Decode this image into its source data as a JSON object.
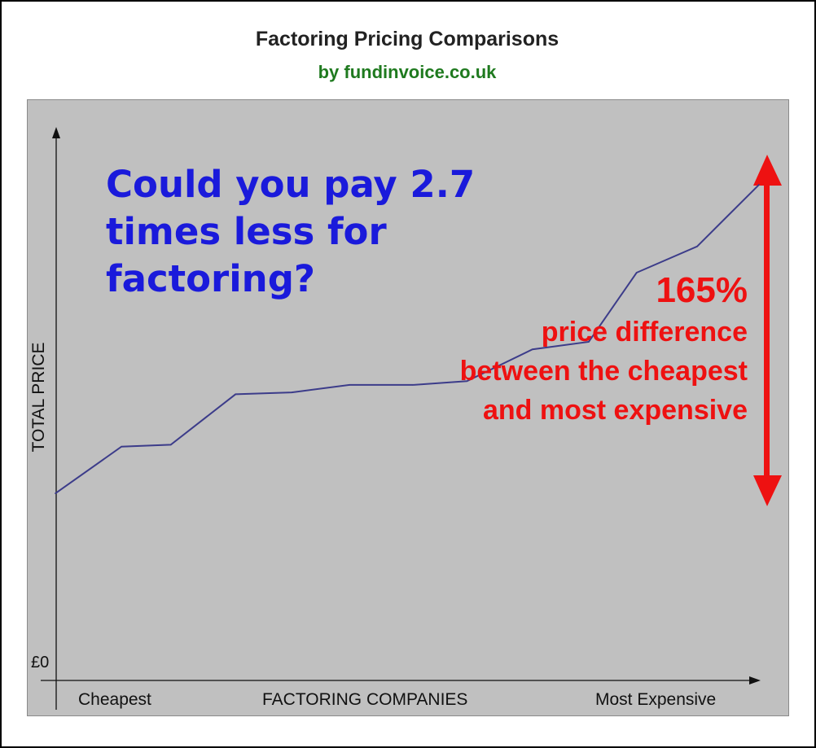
{
  "chart_data": {
    "type": "line",
    "title": "Factoring Pricing Comparisons",
    "subtitle": "by fundinvoice.co.uk",
    "xlabel": "FACTORING COMPANIES",
    "ylabel": "TOTAL PRICE",
    "y_origin_label": "£0",
    "x_start_label": "Cheapest",
    "x_end_label": "Most Expensive",
    "headline": "Could you pay 2.7 times less for factoring?",
    "annotation": {
      "big": "165%",
      "rest": "price difference between the cheapest and most expensive"
    },
    "grid": false,
    "legend": "none",
    "series": [
      {
        "x": [
          0,
          9.4,
          16.4,
          25.6,
          33.6,
          41.8,
          50.8,
          58.5,
          67.8,
          75.8,
          82.6,
          91.2,
          100
        ],
        "values": [
          100,
          125,
          126,
          153,
          154,
          158,
          158,
          160,
          177,
          181,
          218,
          232,
          265
        ]
      }
    ],
    "xlim": [
      0,
      100
    ],
    "ylim": [
      0,
      295
    ],
    "colors": {
      "line": "#3c3c8a",
      "headline": "#1a1adb",
      "annotation": "#ee1111",
      "subtitle": "#1f7a1f",
      "plot_bg": "#c0c0c0"
    }
  }
}
